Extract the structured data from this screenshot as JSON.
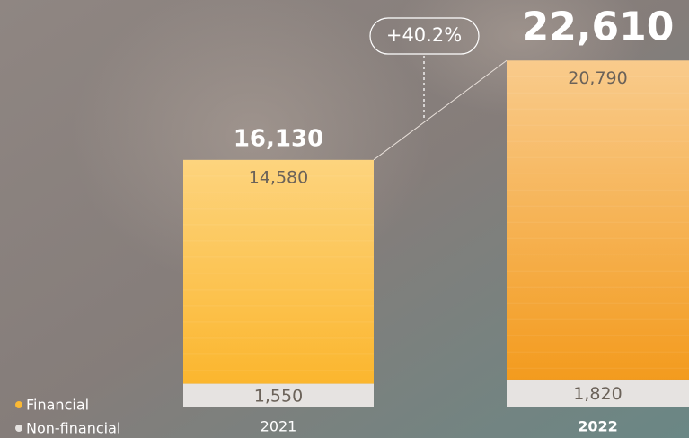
{
  "chart_data": {
    "type": "stacked-bar",
    "annotation": "+40.2%",
    "categories": [
      "2021",
      "2022"
    ],
    "series": [
      {
        "name": "Non-financial",
        "color": "#e6e3e1",
        "values": [
          1550,
          1820
        ],
        "value_labels": [
          "1,550",
          "1,820"
        ]
      },
      {
        "name": "Financial",
        "color": "#fbb934",
        "values": [
          14580,
          20790
        ],
        "value_labels": [
          "14,580",
          "20,790"
        ]
      }
    ],
    "totals": {
      "values": [
        16130,
        22610
      ],
      "value_labels": [
        "16,130",
        "22,610"
      ]
    }
  }
}
